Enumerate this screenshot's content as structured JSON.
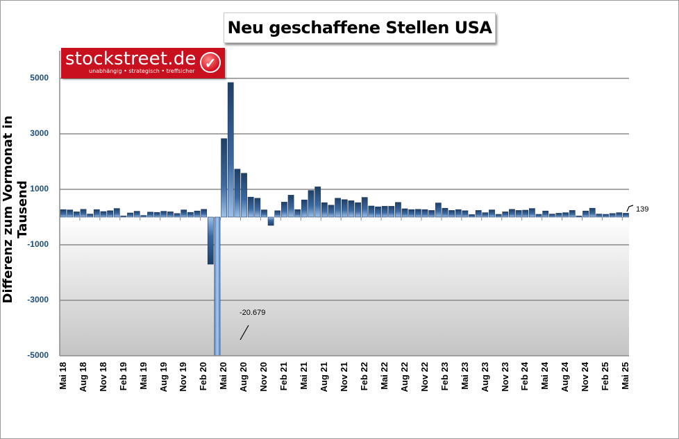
{
  "title": "Neu geschaffene Stellen USA",
  "logo": {
    "brand": "stockstreet.de",
    "tagline": "unabhängig • strategisch • treffsicher",
    "icon": "checkmark-icon",
    "color": "#c8101e"
  },
  "colors": {
    "bar": "#2f5f97",
    "bar_light": "#8fb4e0",
    "tick_label": "#1f4e79"
  },
  "annotations": {
    "min_label": "-20.679",
    "last_label": "139"
  },
  "chart_data": {
    "type": "bar",
    "title": "Neu geschaffene Stellen USA",
    "xlabel": "",
    "ylabel": "Differenz zum Vormonat in Tausend",
    "ylim": [
      -5000,
      6000
    ],
    "yticks": [
      5000,
      3000,
      1000,
      -1000,
      -3000,
      -5000
    ],
    "ytick_labels": [
      "5000",
      "3000",
      "1000",
      "-1000",
      "-3000",
      "-5000"
    ],
    "grid": true,
    "legend": null,
    "xtick_labels": [
      "Mai 18",
      "Aug 18",
      "Nov 18",
      "Feb 19",
      "Mai 19",
      "Aug 19",
      "Nov 19",
      "Feb 20",
      "Mai 20",
      "Aug 20",
      "Nov 20",
      "Feb 21",
      "Mai 21",
      "Aug 21",
      "Nov 21",
      "Feb 22",
      "Mai 22",
      "Aug 22",
      "Nov 22",
      "Feb 23",
      "Mai 23",
      "Aug 23",
      "Nov 23",
      "Feb 24",
      "Mai 24",
      "Aug 24",
      "Nov 24",
      "Feb 25",
      "Mai 25"
    ],
    "categories": [
      "Mai 18",
      "Jun 18",
      "Jul 18",
      "Aug 18",
      "Sep 18",
      "Okt 18",
      "Nov 18",
      "Dez 18",
      "Jan 19",
      "Feb 19",
      "Mär 19",
      "Apr 19",
      "Mai 19",
      "Jun 19",
      "Jul 19",
      "Aug 19",
      "Sep 19",
      "Okt 19",
      "Nov 19",
      "Dez 19",
      "Jan 20",
      "Feb 20",
      "Mär 20",
      "Apr 20",
      "Mai 20",
      "Jun 20",
      "Jul 20",
      "Aug 20",
      "Sep 20",
      "Okt 20",
      "Nov 20",
      "Dez 20",
      "Jan 21",
      "Feb 21",
      "Mär 21",
      "Apr 21",
      "Mai 21",
      "Jun 21",
      "Jul 21",
      "Aug 21",
      "Sep 21",
      "Okt 21",
      "Nov 21",
      "Dez 21",
      "Jan 22",
      "Feb 22",
      "Mär 22",
      "Apr 22",
      "Mai 22",
      "Jun 22",
      "Jul 22",
      "Aug 22",
      "Sep 22",
      "Okt 22",
      "Nov 22",
      "Dez 22",
      "Jan 23",
      "Feb 23",
      "Mär 23",
      "Apr 23",
      "Mai 23",
      "Jun 23",
      "Jul 23",
      "Aug 23",
      "Sep 23",
      "Okt 23",
      "Nov 23",
      "Dez 23",
      "Jan 24",
      "Feb 24",
      "Mär 24",
      "Apr 24",
      "Mai 24",
      "Jun 24",
      "Jul 24",
      "Aug 24",
      "Sep 24",
      "Okt 24",
      "Nov 24",
      "Dez 24",
      "Jan 25",
      "Feb 25",
      "Mär 25",
      "Apr 25",
      "Mai 25"
    ],
    "values": [
      270,
      260,
      190,
      280,
      110,
      270,
      200,
      230,
      310,
      40,
      150,
      210,
      60,
      180,
      170,
      210,
      190,
      130,
      260,
      170,
      220,
      280,
      -1700,
      -20679,
      2830,
      4850,
      1730,
      1580,
      720,
      680,
      260,
      -300,
      230,
      540,
      790,
      270,
      620,
      960,
      1090,
      520,
      430,
      680,
      630,
      590,
      520,
      710,
      400,
      370,
      390,
      390,
      530,
      300,
      270,
      280,
      270,
      240,
      510,
      320,
      240,
      270,
      230,
      90,
      240,
      160,
      260,
      100,
      190,
      280,
      240,
      250,
      310,
      100,
      220,
      110,
      140,
      160,
      240,
      40,
      220,
      320,
      110,
      100,
      130,
      160,
      139
    ],
    "annotations": [
      {
        "label": "-20.679",
        "category": "Apr 20"
      },
      {
        "label": "139",
        "category": "Mai 25"
      }
    ]
  }
}
